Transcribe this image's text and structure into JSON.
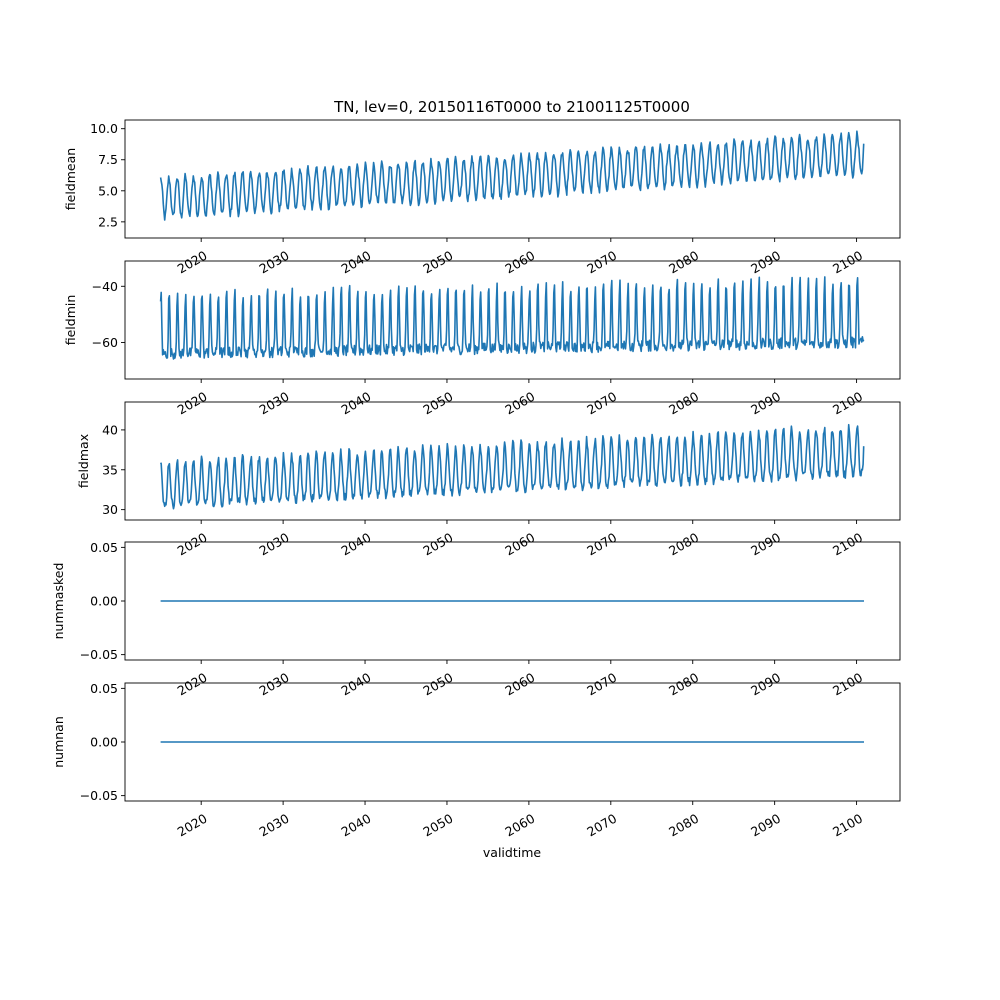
{
  "figure": {
    "title": "TN, lev=0, 20150116T0000 to 21001125T0000",
    "xlabel": "validtime"
  },
  "colors": {
    "line": "#1f77b4",
    "axes": "#000000",
    "background": "#ffffff"
  },
  "chart_data": [
    {
      "type": "line",
      "ylabel": "fieldmean",
      "xlim": [
        2010.7,
        2105.3
      ],
      "ylim": [
        1.2,
        10.7
      ],
      "yticks": [
        2.5,
        5.0,
        7.5,
        10.0
      ],
      "ytick_labels": [
        "2.5",
        "5.0",
        "7.5",
        "10.0"
      ],
      "series": [
        {
          "x_range": [
            2015.04,
            2100.9
          ],
          "seasonal_cycle": {
            "annual_low_start": 2.8,
            "annual_low_end": 6.3,
            "annual_high_start": 6.0,
            "annual_high_end": 9.6,
            "peak_max": 10.2,
            "trough_min": 1.6
          }
        }
      ]
    },
    {
      "type": "line",
      "ylabel": "fieldmin",
      "xlim": [
        2010.7,
        2105.3
      ],
      "ylim": [
        -73,
        -31
      ],
      "yticks": [
        -60,
        -40
      ],
      "ytick_labels": [
        "−60",
        "−40"
      ],
      "series": [
        {
          "x_range": [
            2015.04,
            2100.9
          ],
          "seasonal_cycle": {
            "annual_low_start": -64,
            "annual_low_end": -60,
            "annual_high_start": -42,
            "annual_high_end": -37,
            "peak_max": -33,
            "trough_min": -72
          }
        }
      ]
    },
    {
      "type": "line",
      "ylabel": "fieldmax",
      "xlim": [
        2010.7,
        2105.3
      ],
      "ylim": [
        28.7,
        43.5
      ],
      "yticks": [
        30,
        35,
        40
      ],
      "ytick_labels": [
        "30",
        "35",
        "40"
      ],
      "series": [
        {
          "x_range": [
            2015.04,
            2100.9
          ],
          "seasonal_cycle": {
            "annual_low_start": 30.5,
            "annual_low_end": 34.5,
            "annual_high_start": 36.0,
            "annual_high_end": 40.5,
            "peak_max": 43.0,
            "trough_min": 29.4
          }
        }
      ]
    },
    {
      "type": "line",
      "ylabel": "nummasked",
      "xlim": [
        2010.7,
        2105.3
      ],
      "ylim": [
        -0.055,
        0.055
      ],
      "yticks": [
        -0.05,
        0.0,
        0.05
      ],
      "ytick_labels": [
        "−0.05",
        "0.00",
        "0.05"
      ],
      "series": [
        {
          "x": [
            2015.04,
            2100.9
          ],
          "y": [
            0,
            0
          ]
        }
      ]
    },
    {
      "type": "line",
      "ylabel": "numnan",
      "xlim": [
        2010.7,
        2105.3
      ],
      "ylim": [
        -0.055,
        0.055
      ],
      "yticks": [
        -0.05,
        0.0,
        0.05
      ],
      "ytick_labels": [
        "−0.05",
        "0.00",
        "0.05"
      ],
      "series": [
        {
          "x": [
            2015.04,
            2100.9
          ],
          "y": [
            0,
            0
          ]
        }
      ]
    }
  ],
  "xaxis": {
    "ticks": [
      2020,
      2030,
      2040,
      2050,
      2060,
      2070,
      2080,
      2090,
      2100
    ],
    "tick_labels": [
      "2020",
      "2030",
      "2040",
      "2050",
      "2060",
      "2070",
      "2080",
      "2090",
      "2100"
    ]
  }
}
